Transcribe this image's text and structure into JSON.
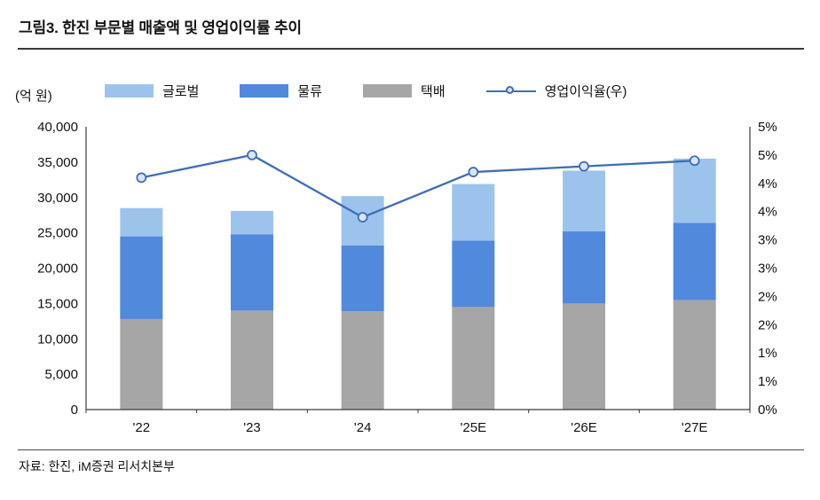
{
  "header": {
    "title": "그림3.  한진 부문별 매출액 및 영업이익률 추이"
  },
  "footer": {
    "source": "자료: 한진, iM증권 리서치본부"
  },
  "chart_data": {
    "type": "bar",
    "subtype": "stacked-bars-with-line",
    "title": "한진 부문별 매출액 및 영업이익률 추이",
    "unit_label": "(억 원)",
    "categories": [
      "'22",
      "'23",
      "'24",
      "'25E",
      "'26E",
      "'27E"
    ],
    "series": [
      {
        "name": "글로벌",
        "color": "#9CC3EC",
        "values": [
          4000,
          3300,
          7000,
          8000,
          8600,
          9100
        ]
      },
      {
        "name": "물류",
        "color": "#5189DC",
        "values": [
          11700,
          10800,
          9300,
          9400,
          10200,
          10900
        ]
      },
      {
        "name": "택배",
        "color": "#A6A6A6",
        "values": [
          12800,
          14000,
          13900,
          14500,
          15000,
          15500
        ]
      }
    ],
    "stack_bottom_to_top": [
      "택배",
      "물류",
      "글로벌"
    ],
    "totals": [
      28500,
      28100,
      30200,
      31900,
      33800,
      35500
    ],
    "line_series": {
      "name": "영업이익율(우)",
      "axis": "right",
      "color": "#3D6EB8",
      "marker_fill": "#D9E4F4",
      "values": [
        4.1,
        4.5,
        3.4,
        4.2,
        4.3,
        4.4
      ]
    },
    "left_axis": {
      "min": 0,
      "max": 40000,
      "ticks_top_to_bottom": [
        "40,000",
        "35,000",
        "30,000",
        "25,000",
        "20,000",
        "15,000",
        "10,000",
        "5,000",
        "0"
      ]
    },
    "right_axis": {
      "min": 0,
      "max": 5,
      "ticks_top_to_bottom": [
        "5%",
        "5%",
        "4%",
        "4%",
        "3%",
        "3%",
        "2%",
        "2%",
        "1%",
        "1%",
        "0%"
      ]
    },
    "grid": false,
    "legend_position": "top"
  }
}
